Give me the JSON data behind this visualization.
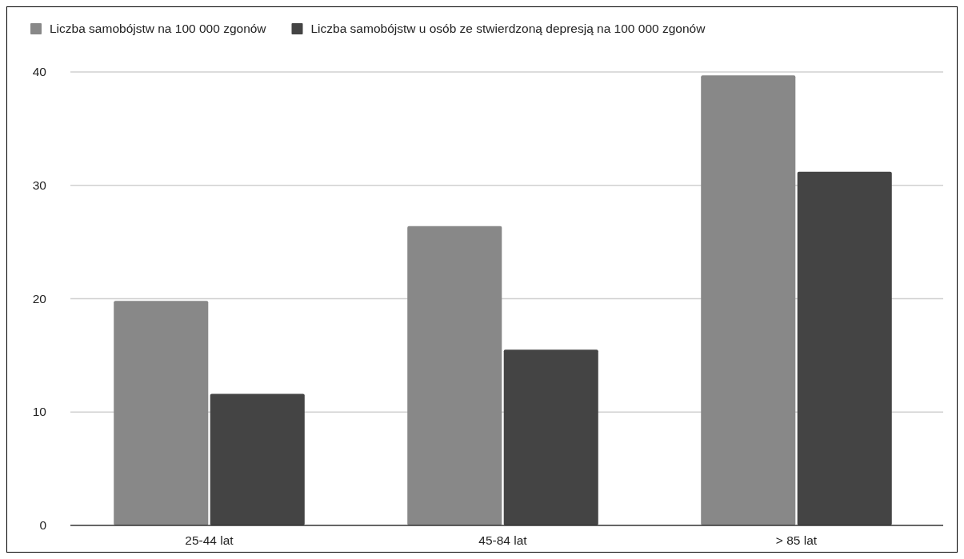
{
  "chart_data": {
    "type": "bar",
    "categories": [
      "25-44 lat",
      "45-84 lat",
      "> 85 lat"
    ],
    "series": [
      {
        "name": "Liczba samobójstw na 100 000 zgonów",
        "color": "#888888",
        "values": [
          19.8,
          26.4,
          39.7
        ]
      },
      {
        "name": "Liczba samobójstw u osób ze stwierdzoną depresją na 100 000 zgonów",
        "color": "#444444",
        "values": [
          11.6,
          15.5,
          31.2
        ]
      }
    ],
    "ylim": [
      0,
      40
    ],
    "yticks": [
      0,
      10,
      20,
      30,
      40
    ],
    "grid": "y",
    "legend": "top left"
  }
}
